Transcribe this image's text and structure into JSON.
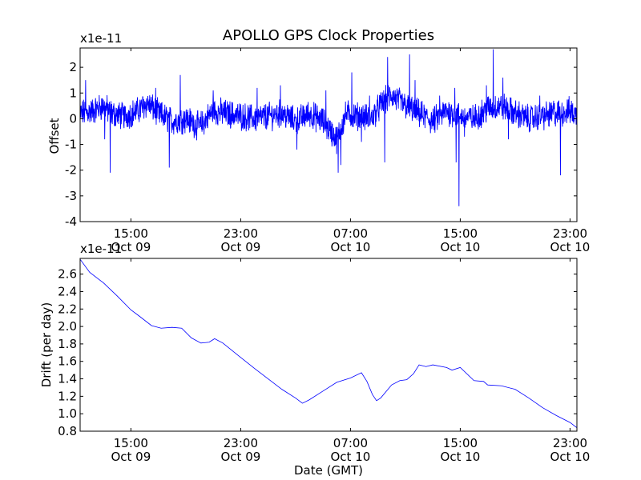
{
  "chart_data": [
    {
      "type": "line",
      "title": "APOLLO GPS Clock Properties",
      "xlabel": "",
      "ylabel": "Offset",
      "offset_text": "x1e-11",
      "ylim": [
        -4,
        2.75
      ],
      "yticks": [
        {
          "value": 2,
          "label": "2"
        },
        {
          "value": 1,
          "label": "1"
        },
        {
          "value": 0,
          "label": "0"
        },
        {
          "value": -1,
          "label": "-1"
        },
        {
          "value": -2,
          "label": "-2"
        },
        {
          "value": -3,
          "label": "-3"
        },
        {
          "value": -4,
          "label": "-4"
        }
      ],
      "xlim_hours": [
        11.3,
        47.5
      ],
      "xticks": [
        {
          "hour": 15,
          "time": "15:00",
          "date": "Oct 09"
        },
        {
          "hour": 23,
          "time": "23:00",
          "date": "Oct 09"
        },
        {
          "hour": 31,
          "time": "07:00",
          "date": "Oct 10"
        },
        {
          "hour": 39,
          "time": "15:00",
          "date": "Oct 10"
        },
        {
          "hour": 47,
          "time": "23:00",
          "date": "Oct 10"
        }
      ],
      "series": [
        {
          "name": "offset",
          "color": "#0000ff",
          "noise": 0.45,
          "points": [
            [
              11.3,
              0.2
            ],
            [
              12.2,
              0.3
            ],
            [
              13.0,
              0.5
            ],
            [
              13.6,
              0.2
            ],
            [
              14.5,
              0.1
            ],
            [
              15.5,
              0.3
            ],
            [
              16.2,
              0.6
            ],
            [
              17.0,
              0.2
            ],
            [
              18.0,
              -0.1
            ],
            [
              19.0,
              0.0
            ],
            [
              20.0,
              -0.3
            ],
            [
              21.0,
              0.3
            ],
            [
              22.0,
              0.2
            ],
            [
              23.0,
              0.1
            ],
            [
              24.0,
              0.0
            ],
            [
              25.0,
              0.1
            ],
            [
              26.0,
              0.2
            ],
            [
              27.0,
              -0.1
            ],
            [
              28.0,
              0.2
            ],
            [
              29.0,
              -0.1
            ],
            [
              30.0,
              -0.8
            ],
            [
              30.7,
              0.2
            ],
            [
              31.5,
              0.1
            ],
            [
              32.5,
              0.0
            ],
            [
              33.3,
              0.6
            ],
            [
              34.0,
              0.9
            ],
            [
              35.0,
              0.5
            ],
            [
              36.0,
              0.2
            ],
            [
              37.0,
              -0.1
            ],
            [
              38.0,
              0.3
            ],
            [
              39.0,
              0.1
            ],
            [
              40.0,
              0.0
            ],
            [
              41.0,
              0.4
            ],
            [
              42.0,
              0.5
            ],
            [
              43.0,
              0.2
            ],
            [
              44.0,
              0.0
            ],
            [
              45.0,
              0.1
            ],
            [
              46.0,
              0.2
            ],
            [
              47.0,
              0.3
            ],
            [
              47.5,
              0.1
            ]
          ],
          "spikes": [
            [
              11.7,
              1.5
            ],
            [
              13.1,
              -0.8
            ],
            [
              13.5,
              -2.1
            ],
            [
              16.8,
              1.2
            ],
            [
              17.8,
              -1.9
            ],
            [
              18.6,
              1.7
            ],
            [
              21.0,
              1.1
            ],
            [
              24.2,
              1.2
            ],
            [
              25.9,
              1.3
            ],
            [
              27.1,
              -1.2
            ],
            [
              29.2,
              1.1
            ],
            [
              30.1,
              -2.1
            ],
            [
              30.3,
              -1.8
            ],
            [
              31.1,
              1.8
            ],
            [
              31.8,
              -0.9
            ],
            [
              32.4,
              0.9
            ],
            [
              33.5,
              -1.7
            ],
            [
              33.7,
              2.4
            ],
            [
              34.1,
              0.7
            ],
            [
              35.3,
              2.5
            ],
            [
              35.7,
              1.5
            ],
            [
              37.5,
              0.9
            ],
            [
              38.6,
              1.2
            ],
            [
              38.7,
              -1.7
            ],
            [
              38.9,
              -3.4
            ],
            [
              39.3,
              -0.7
            ],
            [
              40.9,
              1.3
            ],
            [
              41.4,
              2.7
            ],
            [
              42.1,
              1.6
            ],
            [
              42.5,
              -0.8
            ],
            [
              44.8,
              0.9
            ],
            [
              45.8,
              0.7
            ],
            [
              46.3,
              -2.2
            ],
            [
              47.2,
              0.6
            ]
          ]
        }
      ]
    },
    {
      "type": "line",
      "title": "",
      "xlabel": "Date (GMT)",
      "ylabel": "Drift (per day)",
      "offset_text": "x1e-11",
      "ylim": [
        0.8,
        2.78
      ],
      "yticks": [
        {
          "value": 2.6,
          "label": "2.6"
        },
        {
          "value": 2.4,
          "label": "2.4"
        },
        {
          "value": 2.2,
          "label": "2.2"
        },
        {
          "value": 2.0,
          "label": "2.0"
        },
        {
          "value": 1.8,
          "label": "1.8"
        },
        {
          "value": 1.6,
          "label": "1.6"
        },
        {
          "value": 1.4,
          "label": "1.4"
        },
        {
          "value": 1.2,
          "label": "1.2"
        },
        {
          "value": 1.0,
          "label": "1.0"
        },
        {
          "value": 0.8,
          "label": "0.8"
        }
      ],
      "xlim_hours": [
        11.3,
        47.5
      ],
      "xticks": [
        {
          "hour": 15,
          "time": "15:00",
          "date": "Oct 09"
        },
        {
          "hour": 23,
          "time": "23:00",
          "date": "Oct 09"
        },
        {
          "hour": 31,
          "time": "07:00",
          "date": "Oct 10"
        },
        {
          "hour": 39,
          "time": "15:00",
          "date": "Oct 10"
        },
        {
          "hour": 47,
          "time": "23:00",
          "date": "Oct 10"
        }
      ],
      "series": [
        {
          "name": "drift",
          "color": "#0000ff",
          "points": [
            [
              11.3,
              2.77
            ],
            [
              12.0,
              2.62
            ],
            [
              13.0,
              2.5
            ],
            [
              14.0,
              2.35
            ],
            [
              15.0,
              2.19
            ],
            [
              15.6,
              2.12
            ],
            [
              16.5,
              2.01
            ],
            [
              17.2,
              1.98
            ],
            [
              18.0,
              1.99
            ],
            [
              18.7,
              1.98
            ],
            [
              19.4,
              1.87
            ],
            [
              20.1,
              1.81
            ],
            [
              20.7,
              1.82
            ],
            [
              21.1,
              1.86
            ],
            [
              21.7,
              1.81
            ],
            [
              22.8,
              1.67
            ],
            [
              24.0,
              1.52
            ],
            [
              25.0,
              1.4
            ],
            [
              26.0,
              1.28
            ],
            [
              27.0,
              1.18
            ],
            [
              27.5,
              1.12
            ],
            [
              28.0,
              1.16
            ],
            [
              29.0,
              1.26
            ],
            [
              30.0,
              1.36
            ],
            [
              31.0,
              1.41
            ],
            [
              31.8,
              1.47
            ],
            [
              32.2,
              1.37
            ],
            [
              32.6,
              1.22
            ],
            [
              32.9,
              1.15
            ],
            [
              33.2,
              1.18
            ],
            [
              34.0,
              1.33
            ],
            [
              34.6,
              1.38
            ],
            [
              35.1,
              1.39
            ],
            [
              35.6,
              1.46
            ],
            [
              36.0,
              1.56
            ],
            [
              36.5,
              1.54
            ],
            [
              37.0,
              1.56
            ],
            [
              38.0,
              1.53
            ],
            [
              38.4,
              1.5
            ],
            [
              39.0,
              1.53
            ],
            [
              40.0,
              1.38
            ],
            [
              40.7,
              1.37
            ],
            [
              41.0,
              1.33
            ],
            [
              42.0,
              1.32
            ],
            [
              43.0,
              1.28
            ],
            [
              44.0,
              1.18
            ],
            [
              45.0,
              1.07
            ],
            [
              46.0,
              0.98
            ],
            [
              47.0,
              0.9
            ],
            [
              47.5,
              0.84
            ]
          ]
        }
      ]
    }
  ]
}
